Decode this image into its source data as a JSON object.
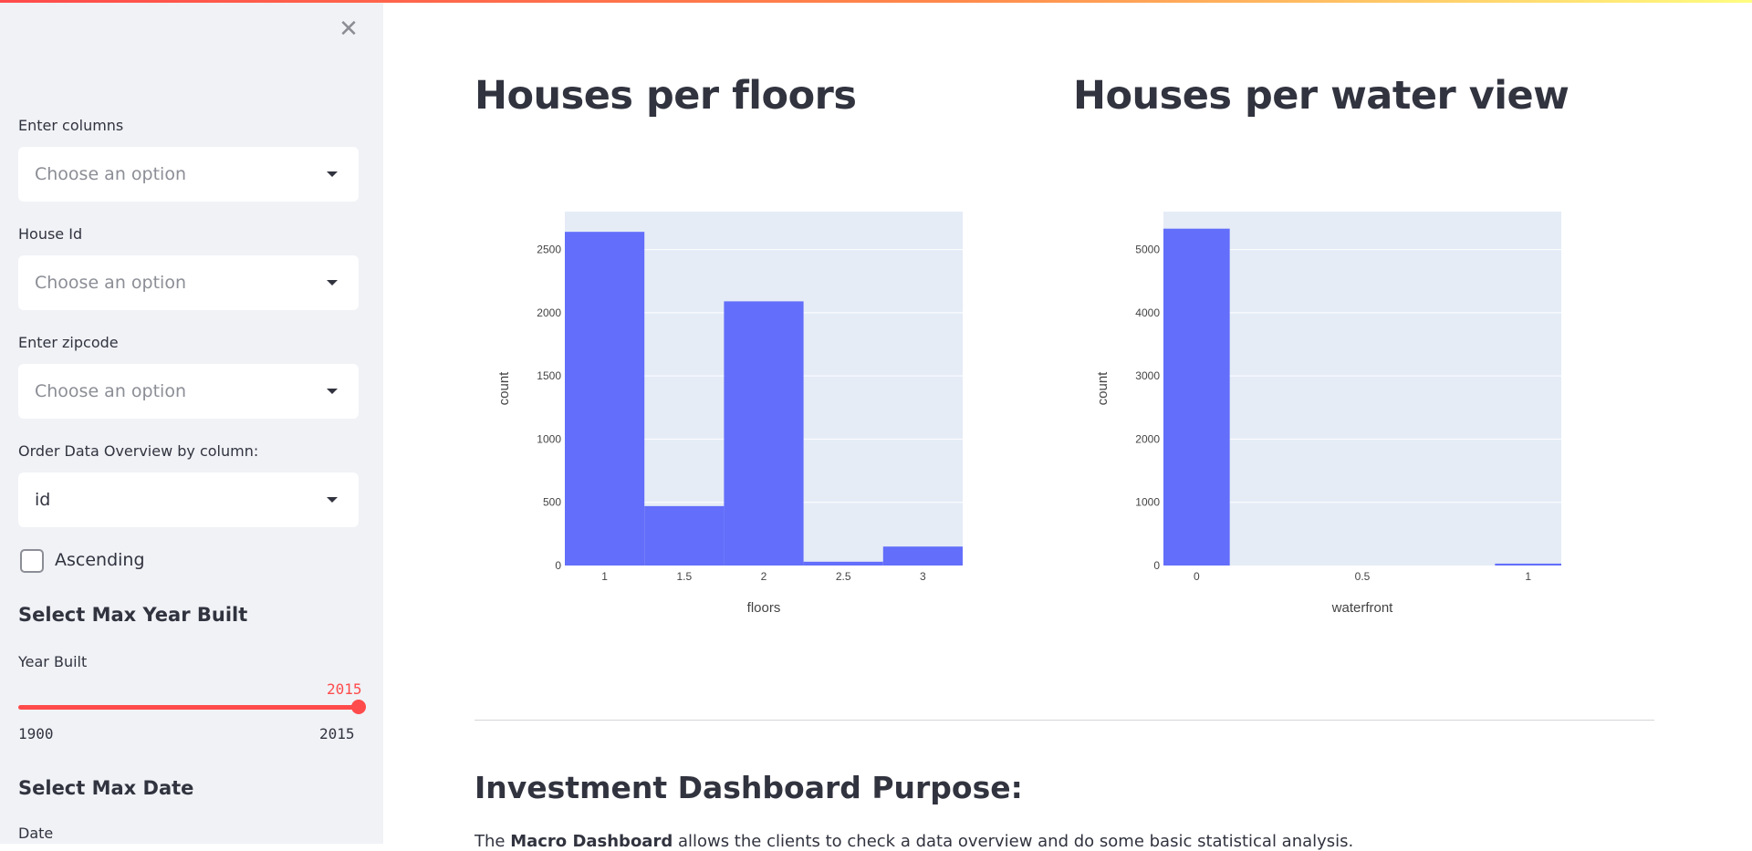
{
  "sidebar": {
    "close_icon": "✕",
    "columns": {
      "label": "Enter columns",
      "placeholder": "Choose an option"
    },
    "house_id": {
      "label": "House Id",
      "placeholder": "Choose an option"
    },
    "zipcode": {
      "label": "Enter zipcode",
      "placeholder": "Choose an option"
    },
    "order": {
      "label": "Order Data Overview by column:",
      "value": "id"
    },
    "ascending": {
      "label": "Ascending",
      "checked": false
    },
    "year_section": "Select Max Year Built",
    "year_slider": {
      "label": "Year Built",
      "value": "2015",
      "min": "1900",
      "max": "2015"
    },
    "date_section": "Select Max Date",
    "date_label": "Date"
  },
  "main": {
    "floors_title": "Houses per floors",
    "water_title": "Houses per water view",
    "purpose_title": "Investment Dashboard Purpose:",
    "purpose_prefix": "The ",
    "purpose_bold": "Macro Dashboard",
    "purpose_suffix": " allows the clients to check a data overview and do some basic statistical analysis."
  },
  "colors": {
    "bar": "#636efa",
    "plot_bg": "#e5ecf6",
    "accent": "#ff4b4b"
  },
  "chart_data": [
    {
      "type": "bar",
      "title": "Houses per floors",
      "xlabel": "floors",
      "ylabel": "count",
      "categories": [
        "1",
        "1.5",
        "2",
        "2.5",
        "3"
      ],
      "x": [
        1,
        1.5,
        2,
        2.5,
        3
      ],
      "values": [
        2640,
        470,
        2090,
        30,
        150
      ],
      "xlim": [
        0.75,
        3.25
      ],
      "ylim": [
        0,
        2800
      ],
      "yticks": [
        0,
        500,
        1000,
        1500,
        2000,
        2500
      ],
      "xticks": [
        "1",
        "1.5",
        "2",
        "2.5",
        "3"
      ],
      "grid": true
    },
    {
      "type": "bar",
      "title": "Houses per water view",
      "xlabel": "waterfront",
      "ylabel": "count",
      "x": [
        0,
        1
      ],
      "values": [
        5330,
        30
      ],
      "xlim": [
        -0.1,
        1.1
      ],
      "ylim": [
        0,
        5600
      ],
      "yticks": [
        0,
        1000,
        2000,
        3000,
        4000,
        5000
      ],
      "xticks": [
        "0",
        "0.5",
        "1"
      ],
      "grid": true
    }
  ]
}
